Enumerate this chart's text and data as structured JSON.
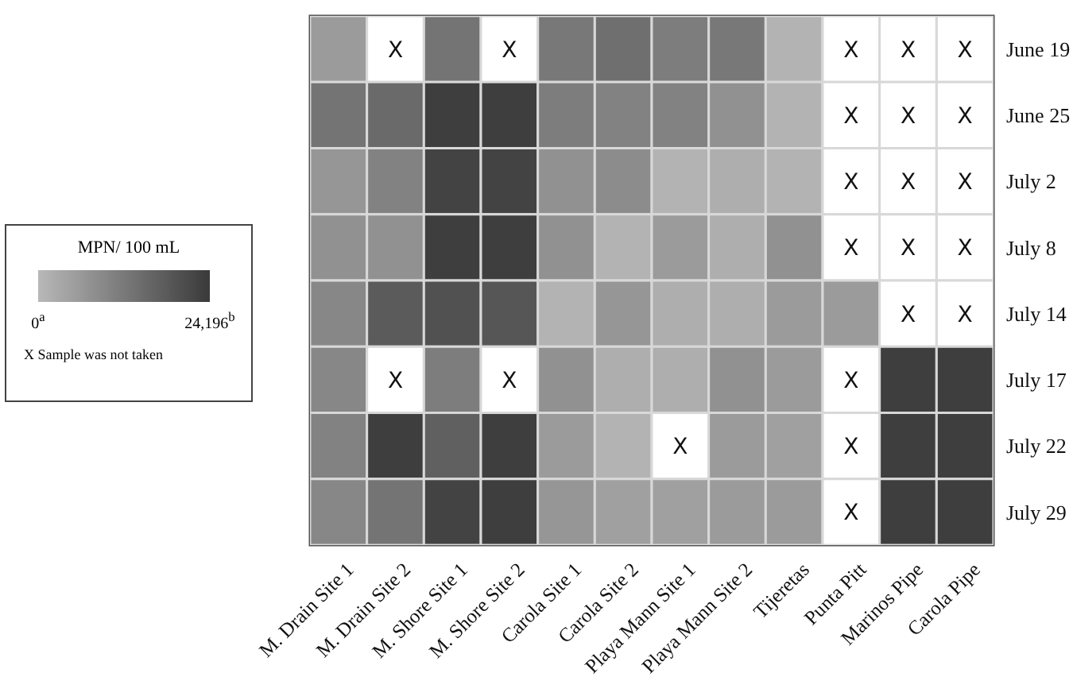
{
  "chart_data": {
    "type": "heatmap",
    "categories": [
      "M. Drain Site 1",
      "M. Drain Site 2",
      "M. Shore Site 1",
      "M. Shore Site 2",
      "Carola Site 1",
      "Carola Site 2",
      "Playa Mann Site 1",
      "Playa Mann Site 2",
      "Tijeretas",
      "Punta Pitt",
      "Marinos Pipe",
      "Carola Pipe"
    ],
    "y_categories": [
      "June 19",
      "June 25",
      "July 2",
      "July 8",
      "July 14",
      "July 17",
      "July 22",
      "July 29"
    ],
    "cells": [
      [
        5600,
        null,
        13100,
        null,
        12200,
        14100,
        11300,
        12200,
        900,
        null,
        null,
        null
      ],
      [
        13100,
        15000,
        23500,
        23500,
        11300,
        10300,
        10300,
        7500,
        900,
        null,
        null,
        null
      ],
      [
        6600,
        10300,
        22500,
        22500,
        7500,
        8400,
        900,
        1900,
        900,
        null,
        null,
        null
      ],
      [
        7500,
        7500,
        23500,
        23500,
        7500,
        900,
        5600,
        1900,
        7500,
        null,
        null,
        null
      ],
      [
        9400,
        17800,
        19700,
        18800,
        900,
        6600,
        1900,
        1900,
        5600,
        5600,
        null,
        null
      ],
      [
        9400,
        null,
        11300,
        null,
        7500,
        1900,
        1900,
        7500,
        5600,
        null,
        23500,
        23500
      ],
      [
        10300,
        23500,
        16900,
        23500,
        5600,
        900,
        null,
        5600,
        4700,
        null,
        23500,
        23500
      ],
      [
        9400,
        13100,
        22500,
        23500,
        6600,
        4700,
        4700,
        5600,
        5600,
        null,
        23500,
        23500
      ]
    ],
    "cell_labels": [
      [
        null,
        "X",
        null,
        "X",
        null,
        null,
        null,
        null,
        null,
        "X",
        "X",
        "X"
      ],
      [
        null,
        null,
        null,
        null,
        null,
        null,
        null,
        null,
        null,
        "X",
        "X",
        "X"
      ],
      [
        null,
        null,
        null,
        null,
        null,
        null,
        null,
        null,
        null,
        "X",
        "X",
        "X"
      ],
      [
        null,
        null,
        null,
        null,
        null,
        null,
        null,
        null,
        null,
        "X",
        "X",
        "X"
      ],
      [
        null,
        null,
        null,
        null,
        null,
        null,
        null,
        null,
        null,
        null,
        "X",
        "X"
      ],
      [
        null,
        "X",
        null,
        "X",
        null,
        null,
        null,
        null,
        null,
        "X",
        null,
        null
      ],
      [
        null,
        null,
        null,
        null,
        null,
        null,
        "X",
        null,
        null,
        "X",
        null,
        null
      ],
      [
        null,
        null,
        null,
        null,
        null,
        null,
        null,
        null,
        null,
        "X",
        null,
        null
      ]
    ],
    "clabel": "MPN/ 100 mL",
    "clim": [
      0,
      24196
    ],
    "cticks": [
      {
        "value": 0,
        "label": "0$^{a}$"
      },
      {
        "value": 24196,
        "label": "24,196$^{b}$"
      }
    ],
    "annotations": [
      "X Sample was not taken"
    ]
  }
}
